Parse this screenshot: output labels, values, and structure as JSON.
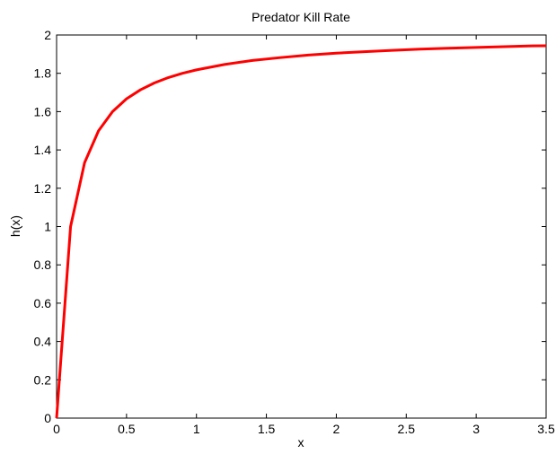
{
  "chart_data": {
    "type": "line",
    "title": "Predator Kill Rate",
    "xlabel": "x",
    "ylabel": "h(x)",
    "xlim": [
      0,
      3.5
    ],
    "ylim": [
      0,
      2
    ],
    "grid": false,
    "xticks": [
      "0",
      "0.5",
      "1",
      "1.5",
      "2",
      "2.5",
      "3",
      "3.5"
    ],
    "yticks": [
      "0",
      "0.2",
      "0.4",
      "0.6",
      "0.8",
      "1",
      "1.2",
      "1.4",
      "1.6",
      "1.8",
      "2"
    ],
    "series": [
      {
        "color": "#ff0000",
        "x": [
          0,
          0.1,
          0.2,
          0.3,
          0.4,
          0.5,
          0.6,
          0.7,
          0.8,
          0.9,
          1.0,
          1.2,
          1.4,
          1.6,
          1.8,
          2.0,
          2.2,
          2.4,
          2.6,
          2.8,
          3.0,
          3.2,
          3.4,
          3.5
        ],
        "y": [
          0,
          1.0,
          1.333,
          1.5,
          1.6,
          1.667,
          1.714,
          1.75,
          1.778,
          1.8,
          1.818,
          1.846,
          1.867,
          1.882,
          1.895,
          1.905,
          1.913,
          1.92,
          1.926,
          1.931,
          1.935,
          1.939,
          1.943,
          1.944
        ]
      }
    ]
  }
}
